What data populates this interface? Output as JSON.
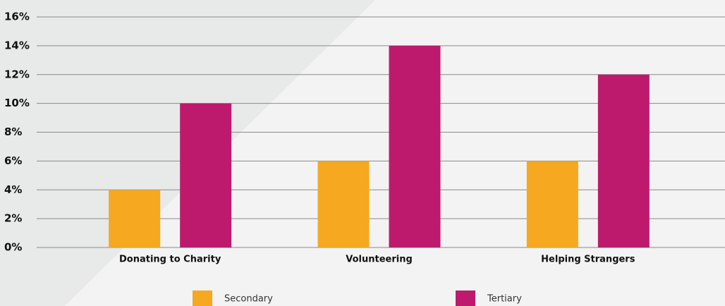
{
  "chart_data": {
    "type": "bar",
    "categories": [
      "Donating to Charity",
      "Volunteering",
      "Helping Strangers"
    ],
    "series": [
      {
        "name": "Secondary",
        "color": "#f6a821",
        "values": [
          4,
          6,
          6
        ]
      },
      {
        "name": "Tertiary",
        "color": "#be1a6d",
        "values": [
          10,
          14,
          12
        ]
      }
    ],
    "ylim": [
      0,
      16
    ],
    "yticks": [
      {
        "value": 0,
        "label": "0%"
      },
      {
        "value": 2,
        "label": "2%"
      },
      {
        "value": 4,
        "label": "4%"
      },
      {
        "value": 6,
        "label": "6%"
      },
      {
        "value": 8,
        "label": "8%"
      },
      {
        "value": 10,
        "label": "10%"
      },
      {
        "value": 12,
        "label": "12%"
      },
      {
        "value": 14,
        "label": "14%"
      },
      {
        "value": 16,
        "label": "16%"
      }
    ],
    "grid": true,
    "legend": "bottom"
  }
}
